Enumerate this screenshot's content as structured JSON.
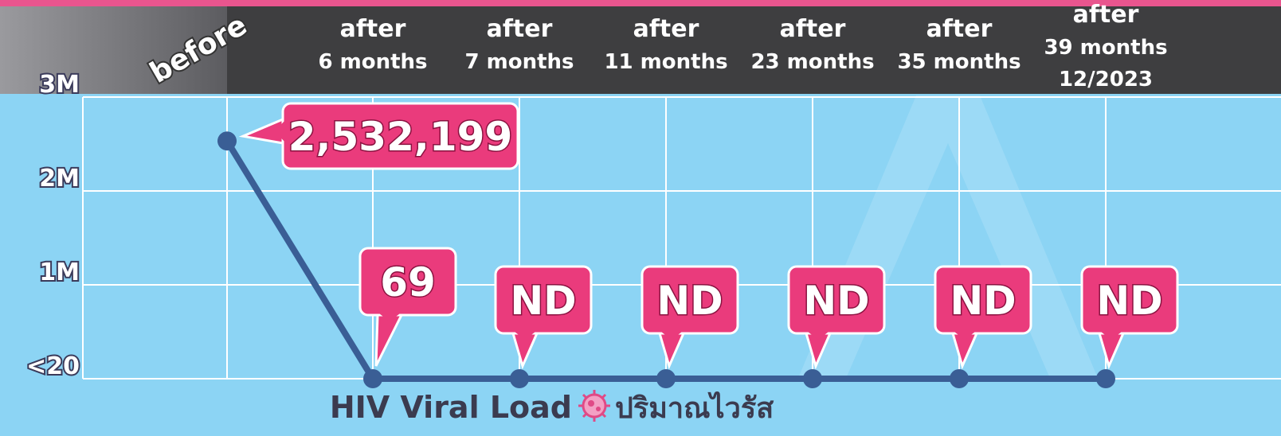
{
  "chart_data": {
    "type": "line",
    "title": "HIV Viral Load",
    "subtitle": "ปริมาณไวรัส",
    "categories": [
      "before",
      "after\n6 months",
      "after\n7 months",
      "after\n11 months",
      "after\n23 months",
      "after\n35 months",
      "after\n39 months\n12/2023"
    ],
    "series": [
      {
        "name": "HIV Viral Load",
        "color": "#3a5e95",
        "values": [
          2532199,
          69,
          0,
          0,
          0,
          0,
          0
        ],
        "value_labels": [
          "2,532,199",
          "69",
          "ND",
          "ND",
          "ND",
          "ND",
          "ND"
        ]
      }
    ],
    "ylim": [
      0,
      3000000
    ],
    "yticks": [
      {
        "value": 20,
        "label": "<20"
      },
      {
        "value": 1000000,
        "label": "1M"
      },
      {
        "value": 2000000,
        "label": "2M"
      },
      {
        "value": 3000000,
        "label": "3M"
      }
    ],
    "grid": true
  }
}
